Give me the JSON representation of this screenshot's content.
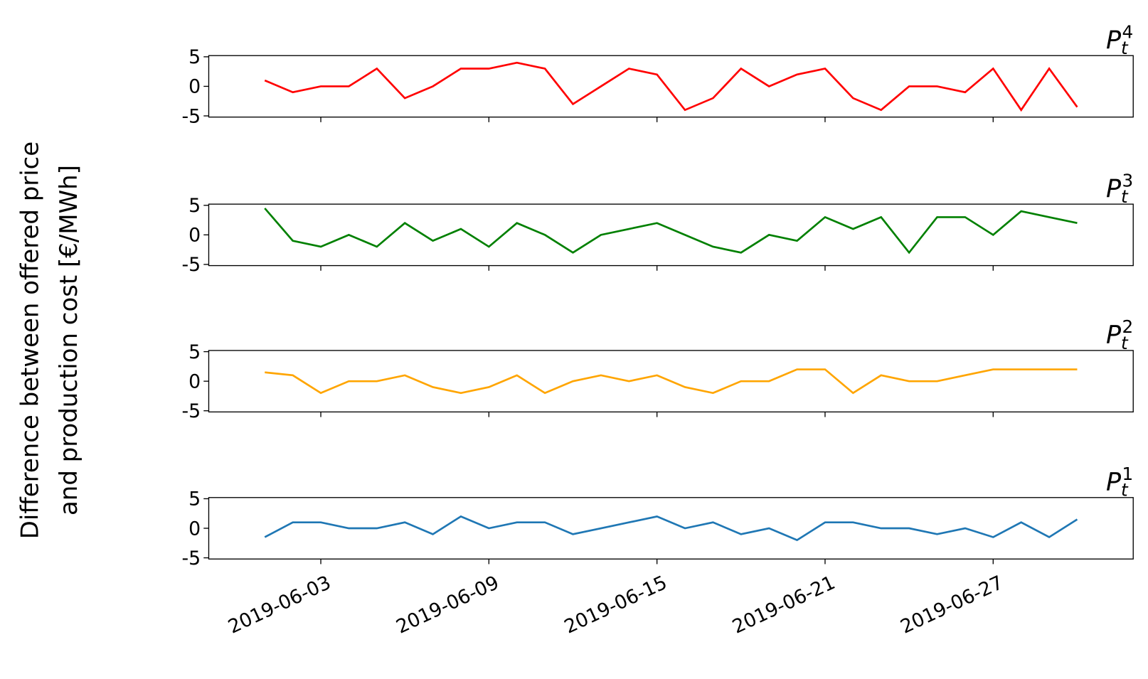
{
  "ylabel": [
    "Difference between offered price",
    "and production cost [€/MWh]"
  ],
  "chart_data": [
    {
      "type": "line",
      "title": {
        "base": "P",
        "subscript": "t",
        "superscript": "4"
      },
      "color": "#ff0000",
      "x": [
        "2019-06-01",
        "2019-06-02",
        "2019-06-03",
        "2019-06-04",
        "2019-06-05",
        "2019-06-06",
        "2019-06-07",
        "2019-06-08",
        "2019-06-09",
        "2019-06-10",
        "2019-06-11",
        "2019-06-12",
        "2019-06-13",
        "2019-06-14",
        "2019-06-15",
        "2019-06-16",
        "2019-06-17",
        "2019-06-18",
        "2019-06-19",
        "2019-06-20",
        "2019-06-21",
        "2019-06-22",
        "2019-06-23",
        "2019-06-24",
        "2019-06-25",
        "2019-06-26",
        "2019-06-27",
        "2019-06-28",
        "2019-06-29",
        "2019-06-30"
      ],
      "values": [
        1,
        -1,
        0,
        0,
        3,
        -2,
        0,
        3,
        3,
        4,
        3,
        -3,
        0,
        3,
        2,
        -4,
        -2,
        3,
        0,
        2,
        3,
        -2,
        -4,
        0,
        0,
        -1,
        3,
        -4,
        3,
        -3.5
      ],
      "xlim": [
        "2019-05-30",
        "2019-07-02"
      ],
      "xticks": [
        "2019-06-03",
        "2019-06-09",
        "2019-06-15",
        "2019-06-21",
        "2019-06-27"
      ],
      "show_xtick_labels": false,
      "ylim": [
        -5.2,
        5.2
      ],
      "yticks": [
        -5,
        0,
        5
      ]
    },
    {
      "type": "line",
      "title": {
        "base": "P",
        "subscript": "t",
        "superscript": "3"
      },
      "color": "#008000",
      "x": [
        "2019-06-01",
        "2019-06-02",
        "2019-06-03",
        "2019-06-04",
        "2019-06-05",
        "2019-06-06",
        "2019-06-07",
        "2019-06-08",
        "2019-06-09",
        "2019-06-10",
        "2019-06-11",
        "2019-06-12",
        "2019-06-13",
        "2019-06-14",
        "2019-06-15",
        "2019-06-16",
        "2019-06-17",
        "2019-06-18",
        "2019-06-19",
        "2019-06-20",
        "2019-06-21",
        "2019-06-22",
        "2019-06-23",
        "2019-06-24",
        "2019-06-25",
        "2019-06-26",
        "2019-06-27",
        "2019-06-28",
        "2019-06-29",
        "2019-06-30"
      ],
      "values": [
        4.5,
        -1,
        -2,
        0,
        -2,
        2,
        -1,
        1,
        -2,
        2,
        0,
        -3,
        0,
        1,
        2,
        0,
        -2,
        -3,
        0,
        -1,
        3,
        1,
        3,
        -3,
        3,
        3,
        0,
        4,
        3,
        2
      ],
      "xlim": [
        "2019-05-30",
        "2019-07-02"
      ],
      "xticks": [
        "2019-06-03",
        "2019-06-09",
        "2019-06-15",
        "2019-06-21",
        "2019-06-27"
      ],
      "show_xtick_labels": false,
      "ylim": [
        -5.2,
        5.2
      ],
      "yticks": [
        -5,
        0,
        5
      ]
    },
    {
      "type": "line",
      "title": {
        "base": "P",
        "subscript": "t",
        "superscript": "2"
      },
      "color": "#ffa500",
      "x": [
        "2019-06-01",
        "2019-06-02",
        "2019-06-03",
        "2019-06-04",
        "2019-06-05",
        "2019-06-06",
        "2019-06-07",
        "2019-06-08",
        "2019-06-09",
        "2019-06-10",
        "2019-06-11",
        "2019-06-12",
        "2019-06-13",
        "2019-06-14",
        "2019-06-15",
        "2019-06-16",
        "2019-06-17",
        "2019-06-18",
        "2019-06-19",
        "2019-06-20",
        "2019-06-21",
        "2019-06-22",
        "2019-06-23",
        "2019-06-24",
        "2019-06-25",
        "2019-06-26",
        "2019-06-27",
        "2019-06-28",
        "2019-06-29",
        "2019-06-30"
      ],
      "values": [
        1.5,
        1,
        -2,
        0,
        0,
        1,
        -1,
        -2,
        -1,
        1,
        -2,
        0,
        1,
        0,
        1,
        -1,
        -2,
        0,
        0,
        2,
        2,
        -2,
        1,
        0,
        0,
        1,
        2,
        2,
        2,
        2
      ],
      "xlim": [
        "2019-05-30",
        "2019-07-02"
      ],
      "xticks": [
        "2019-06-03",
        "2019-06-09",
        "2019-06-15",
        "2019-06-21",
        "2019-06-27"
      ],
      "show_xtick_labels": false,
      "ylim": [
        -5.2,
        5.2
      ],
      "yticks": [
        -5,
        0,
        5
      ]
    },
    {
      "type": "line",
      "title": {
        "base": "P",
        "subscript": "t",
        "superscript": "1"
      },
      "color": "#1f77b4",
      "x": [
        "2019-06-01",
        "2019-06-02",
        "2019-06-03",
        "2019-06-04",
        "2019-06-05",
        "2019-06-06",
        "2019-06-07",
        "2019-06-08",
        "2019-06-09",
        "2019-06-10",
        "2019-06-11",
        "2019-06-12",
        "2019-06-13",
        "2019-06-14",
        "2019-06-15",
        "2019-06-16",
        "2019-06-17",
        "2019-06-18",
        "2019-06-19",
        "2019-06-20",
        "2019-06-21",
        "2019-06-22",
        "2019-06-23",
        "2019-06-24",
        "2019-06-25",
        "2019-06-26",
        "2019-06-27",
        "2019-06-28",
        "2019-06-29",
        "2019-06-30"
      ],
      "values": [
        -1.5,
        1,
        1,
        0,
        0,
        1,
        -1,
        2,
        0,
        1,
        1,
        -1,
        0,
        1,
        2,
        0,
        1,
        -1,
        0,
        -2,
        1,
        1,
        0,
        0,
        -1,
        0,
        -1.5,
        1,
        -1.5,
        1.5
      ],
      "xlim": [
        "2019-05-30",
        "2019-07-02"
      ],
      "xticks": [
        "2019-06-03",
        "2019-06-09",
        "2019-06-15",
        "2019-06-21",
        "2019-06-27"
      ],
      "show_xtick_labels": true,
      "ylim": [
        -5.2,
        5.2
      ],
      "yticks": [
        -5,
        0,
        5
      ]
    }
  ]
}
